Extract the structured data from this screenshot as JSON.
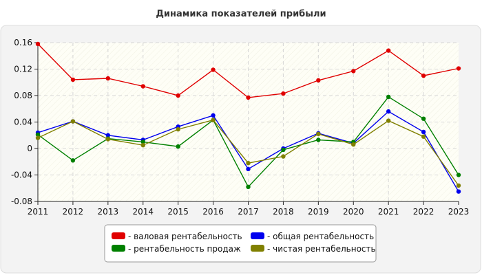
{
  "chart_data": {
    "type": "line",
    "title": "Динамика показателей прибыли",
    "xlabel": "",
    "ylabel": "",
    "x": [
      "2011",
      "2012",
      "2013",
      "2014",
      "2015",
      "2016",
      "2017",
      "2018",
      "2019",
      "2020",
      "2021",
      "2022",
      "2023"
    ],
    "ylim": [
      -0.08,
      0.16
    ],
    "yticks": [
      -0.08,
      -0.04,
      0,
      0.04,
      0.08,
      0.12,
      0.16
    ],
    "ytick_labels": [
      "-0.08",
      "-0.04",
      "0",
      "0.04",
      "0.08",
      "0.12",
      "0.16"
    ],
    "grid": true,
    "legend_position": "bottom-center",
    "series": [
      {
        "name": "- валовая рентабельность",
        "color": "#e00000",
        "values": [
          0.158,
          0.104,
          0.106,
          0.094,
          0.08,
          0.119,
          0.077,
          0.083,
          0.103,
          0.117,
          0.148,
          0.11,
          0.121
        ]
      },
      {
        "name": "- общая рентабельность",
        "color": "#0000ee",
        "values": [
          0.024,
          0.041,
          0.02,
          0.013,
          0.033,
          0.05,
          -0.031,
          0.0,
          0.023,
          0.008,
          0.056,
          0.025,
          -0.065
        ]
      },
      {
        "name": "- рентабельность продаж",
        "color": "#008000",
        "values": [
          0.021,
          -0.018,
          0.015,
          0.01,
          0.003,
          0.043,
          -0.058,
          -0.002,
          0.013,
          0.01,
          0.078,
          0.045,
          -0.04
        ]
      },
      {
        "name": "- чистая рентабельность",
        "color": "#808000",
        "values": [
          0.016,
          0.041,
          0.014,
          0.005,
          0.029,
          0.043,
          -0.022,
          -0.012,
          0.022,
          0.006,
          0.042,
          0.018,
          -0.056
        ]
      }
    ]
  }
}
